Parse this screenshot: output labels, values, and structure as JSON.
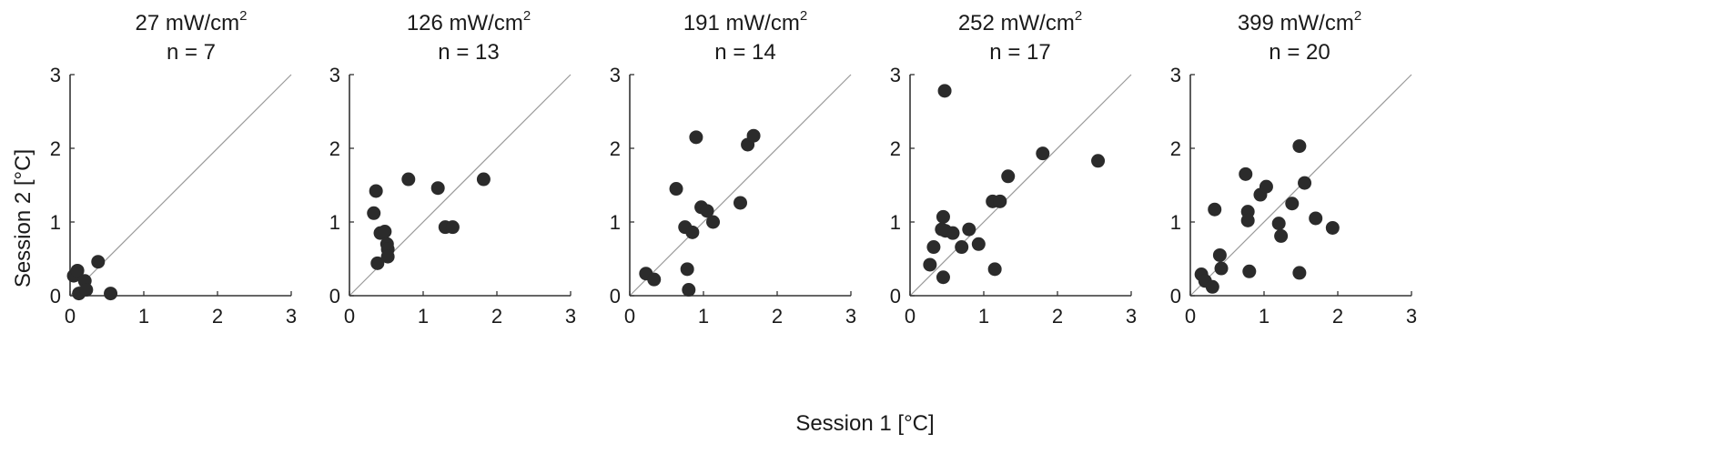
{
  "figure": {
    "y_axis_label": "Session 2 [°C]",
    "x_axis_label": "Session 1 [°C]"
  },
  "chart_data": [
    {
      "type": "scatter",
      "title": "27 mW/cm",
      "title_superscript": "2",
      "subtitle": "n = 7",
      "xlabel": "Session 1 [°C]",
      "ylabel": "Session 2 [°C]",
      "xlim": [
        0,
        3
      ],
      "ylim": [
        0,
        3
      ],
      "xticks": [
        "0",
        "1",
        "2",
        "3"
      ],
      "yticks": [
        "0",
        "1",
        "2",
        "3"
      ],
      "identity_line": true,
      "marker_color": "#2b2b2b",
      "points": [
        {
          "x": 0.05,
          "y": 0.27
        },
        {
          "x": 0.1,
          "y": 0.34
        },
        {
          "x": 0.12,
          "y": 0.03
        },
        {
          "x": 0.2,
          "y": 0.2
        },
        {
          "x": 0.22,
          "y": 0.08
        },
        {
          "x": 0.38,
          "y": 0.46
        },
        {
          "x": 0.55,
          "y": 0.03
        }
      ]
    },
    {
      "type": "scatter",
      "title": "126 mW/cm",
      "title_superscript": "2",
      "subtitle": "n = 13",
      "xlabel": "Session 1 [°C]",
      "ylabel": "Session 2 [°C]",
      "xlim": [
        0,
        3
      ],
      "ylim": [
        0,
        3
      ],
      "xticks": [
        "0",
        "1",
        "2",
        "3"
      ],
      "yticks": [
        "0",
        "1",
        "2",
        "3"
      ],
      "identity_line": true,
      "marker_color": "#2b2b2b",
      "points": [
        {
          "x": 0.33,
          "y": 1.12
        },
        {
          "x": 0.36,
          "y": 1.42
        },
        {
          "x": 0.38,
          "y": 0.44
        },
        {
          "x": 0.42,
          "y": 0.85
        },
        {
          "x": 0.48,
          "y": 0.87
        },
        {
          "x": 0.51,
          "y": 0.7
        },
        {
          "x": 0.52,
          "y": 0.63
        },
        {
          "x": 0.52,
          "y": 0.53
        },
        {
          "x": 0.8,
          "y": 1.58
        },
        {
          "x": 1.2,
          "y": 1.46
        },
        {
          "x": 1.3,
          "y": 0.93
        },
        {
          "x": 1.4,
          "y": 0.93
        },
        {
          "x": 1.82,
          "y": 1.58
        }
      ]
    },
    {
      "type": "scatter",
      "title": "191 mW/cm",
      "title_superscript": "2",
      "subtitle": "n = 14",
      "xlabel": "Session 1 [°C]",
      "ylabel": "Session 2 [°C]",
      "xlim": [
        0,
        3
      ],
      "ylim": [
        0,
        3
      ],
      "xticks": [
        "0",
        "1",
        "2",
        "3"
      ],
      "yticks": [
        "0",
        "1",
        "2",
        "3"
      ],
      "identity_line": true,
      "marker_color": "#2b2b2b",
      "points": [
        {
          "x": 0.22,
          "y": 0.3
        },
        {
          "x": 0.33,
          "y": 0.22
        },
        {
          "x": 0.63,
          "y": 1.45
        },
        {
          "x": 0.75,
          "y": 0.93
        },
        {
          "x": 0.78,
          "y": 0.36
        },
        {
          "x": 0.8,
          "y": 0.08
        },
        {
          "x": 0.85,
          "y": 0.86
        },
        {
          "x": 0.9,
          "y": 2.15
        },
        {
          "x": 0.97,
          "y": 1.2
        },
        {
          "x": 1.05,
          "y": 1.15
        },
        {
          "x": 1.13,
          "y": 1.0
        },
        {
          "x": 1.5,
          "y": 1.26
        },
        {
          "x": 1.6,
          "y": 2.05
        },
        {
          "x": 1.68,
          "y": 2.17
        }
      ]
    },
    {
      "type": "scatter",
      "title": "252 mW/cm",
      "title_superscript": "2",
      "subtitle": "n = 17",
      "xlabel": "Session 1 [°C]",
      "ylabel": "Session 2 [°C]",
      "xlim": [
        0,
        3
      ],
      "ylim": [
        0,
        3
      ],
      "xticks": [
        "0",
        "1",
        "2",
        "3"
      ],
      "yticks": [
        "0",
        "1",
        "2",
        "3"
      ],
      "identity_line": true,
      "marker_color": "#2b2b2b",
      "points": [
        {
          "x": 0.27,
          "y": 0.42
        },
        {
          "x": 0.32,
          "y": 0.66
        },
        {
          "x": 0.45,
          "y": 1.07
        },
        {
          "x": 0.45,
          "y": 0.25
        },
        {
          "x": 0.47,
          "y": 2.78
        },
        {
          "x": 0.48,
          "y": 0.88
        },
        {
          "x": 0.58,
          "y": 0.85
        },
        {
          "x": 0.7,
          "y": 0.66
        },
        {
          "x": 0.8,
          "y": 0.9
        },
        {
          "x": 0.93,
          "y": 0.7
        },
        {
          "x": 1.12,
          "y": 1.28
        },
        {
          "x": 1.15,
          "y": 0.36
        },
        {
          "x": 1.22,
          "y": 1.28
        },
        {
          "x": 1.33,
          "y": 1.62
        },
        {
          "x": 1.8,
          "y": 1.93
        },
        {
          "x": 2.55,
          "y": 1.83
        },
        {
          "x": 0.43,
          "y": 0.9
        }
      ]
    },
    {
      "type": "scatter",
      "title": "399 mW/cm",
      "title_superscript": "2",
      "subtitle": "n = 20",
      "xlabel": "Session 1 [°C]",
      "ylabel": "Session 2 [°C]",
      "xlim": [
        0,
        3
      ],
      "ylim": [
        0,
        3
      ],
      "xticks": [
        "0",
        "1",
        "2",
        "3"
      ],
      "yticks": [
        "0",
        "1",
        "2",
        "3"
      ],
      "identity_line": true,
      "marker_color": "#2b2b2b",
      "points": [
        {
          "x": 0.15,
          "y": 0.29
        },
        {
          "x": 0.2,
          "y": 0.2
        },
        {
          "x": 0.3,
          "y": 0.12
        },
        {
          "x": 0.33,
          "y": 1.17
        },
        {
          "x": 0.4,
          "y": 0.55
        },
        {
          "x": 0.42,
          "y": 0.37
        },
        {
          "x": 0.75,
          "y": 1.65
        },
        {
          "x": 0.78,
          "y": 1.14
        },
        {
          "x": 0.78,
          "y": 1.02
        },
        {
          "x": 0.8,
          "y": 0.33
        },
        {
          "x": 0.95,
          "y": 1.37
        },
        {
          "x": 1.03,
          "y": 1.48
        },
        {
          "x": 1.2,
          "y": 0.98
        },
        {
          "x": 1.23,
          "y": 0.81
        },
        {
          "x": 1.38,
          "y": 1.25
        },
        {
          "x": 1.48,
          "y": 2.03
        },
        {
          "x": 1.48,
          "y": 0.31
        },
        {
          "x": 1.55,
          "y": 1.53
        },
        {
          "x": 1.7,
          "y": 1.05
        },
        {
          "x": 1.93,
          "y": 0.92
        }
      ]
    }
  ]
}
